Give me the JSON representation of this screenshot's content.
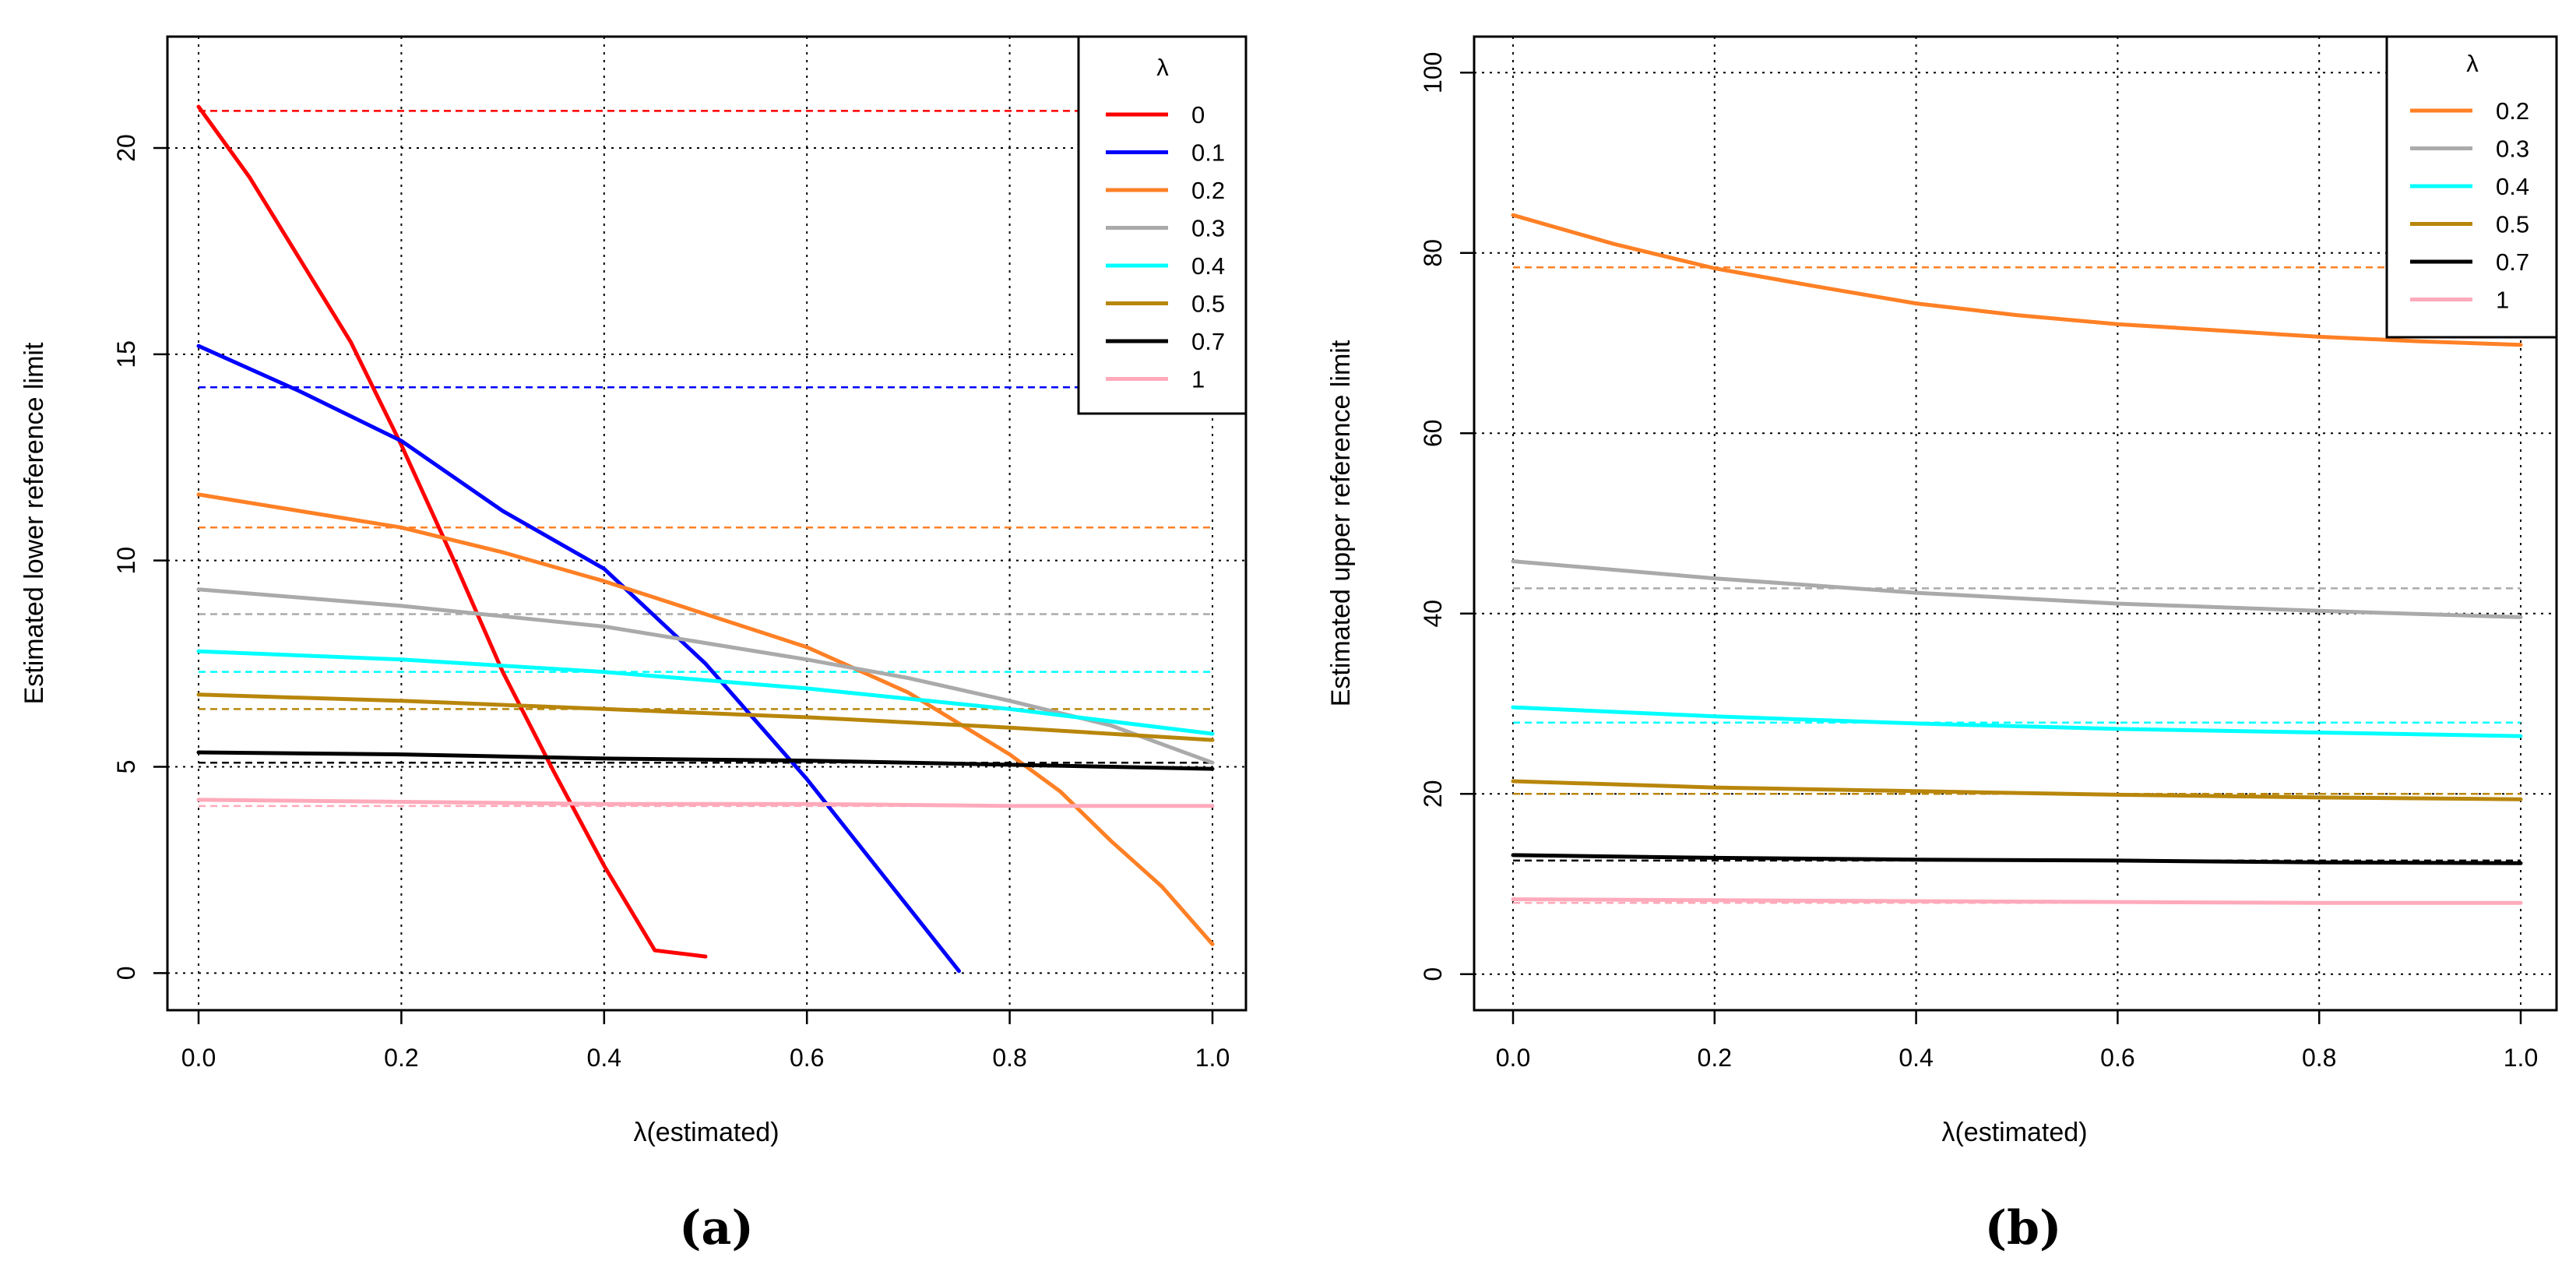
{
  "chart_data": [
    {
      "type": "line",
      "panel_label": "(a)",
      "xlabel": "λ(estimated)",
      "ylabel": "Estimated lower reference limit",
      "xlim": [
        0,
        1
      ],
      "ylim": [
        -0.9,
        22.7
      ],
      "xticks": [
        "0.0",
        "0.2",
        "0.4",
        "0.6",
        "0.8",
        "1.0"
      ],
      "yticks": [
        "0",
        "5",
        "10",
        "15",
        "20"
      ],
      "grid": true,
      "legend": {
        "title": "λ",
        "position": "top-right"
      },
      "series": [
        {
          "name": "0",
          "color": "#ff0000",
          "x": [
            0,
            0.05,
            0.1,
            0.15,
            0.2,
            0.25,
            0.3,
            0.35,
            0.4,
            0.45,
            0.5
          ],
          "y": [
            21.0,
            19.3,
            17.3,
            15.3,
            12.8,
            10.1,
            7.3,
            4.9,
            2.6,
            0.55,
            0.4
          ],
          "reference": 20.9
        },
        {
          "name": "0.1",
          "color": "#0000ff",
          "x": [
            0,
            0.1,
            0.2,
            0.3,
            0.4,
            0.5,
            0.6,
            0.7,
            0.75
          ],
          "y": [
            15.2,
            14.1,
            12.9,
            11.2,
            9.8,
            7.5,
            4.7,
            1.6,
            0.05
          ],
          "reference": 14.2
        },
        {
          "name": "0.2",
          "color": "#ff8025",
          "x": [
            0,
            0.1,
            0.2,
            0.3,
            0.4,
            0.5,
            0.6,
            0.7,
            0.8,
            0.85,
            0.9,
            0.95,
            1.0
          ],
          "y": [
            11.6,
            11.2,
            10.8,
            10.2,
            9.5,
            8.7,
            7.9,
            6.8,
            5.3,
            4.4,
            3.2,
            2.1,
            0.7
          ],
          "reference": 10.8
        },
        {
          "name": "0.3",
          "color": "#aaaaaa",
          "x": [
            0,
            0.1,
            0.2,
            0.3,
            0.4,
            0.5,
            0.6,
            0.7,
            0.8,
            0.9,
            1.0
          ],
          "y": [
            9.3,
            9.1,
            8.9,
            8.65,
            8.4,
            8.0,
            7.6,
            7.15,
            6.6,
            6.0,
            5.1
          ],
          "reference": 8.7
        },
        {
          "name": "0.4",
          "color": "#00ffff",
          "x": [
            0,
            0.2,
            0.4,
            0.6,
            0.8,
            1.0
          ],
          "y": [
            7.8,
            7.6,
            7.3,
            6.9,
            6.4,
            5.8
          ],
          "reference": 7.3
        },
        {
          "name": "0.5",
          "color": "#b8860b",
          "x": [
            0,
            0.2,
            0.4,
            0.6,
            0.8,
            1.0
          ],
          "y": [
            6.75,
            6.6,
            6.4,
            6.2,
            5.95,
            5.65
          ],
          "reference": 6.4
        },
        {
          "name": "0.7",
          "color": "#000000",
          "x": [
            0,
            0.2,
            0.4,
            0.6,
            0.8,
            1.0
          ],
          "y": [
            5.35,
            5.3,
            5.2,
            5.15,
            5.05,
            4.95
          ],
          "reference": 5.1
        },
        {
          "name": "1",
          "color": "#ffaabb",
          "x": [
            0,
            0.2,
            0.4,
            0.6,
            0.8,
            1.0
          ],
          "y": [
            4.2,
            4.15,
            4.1,
            4.1,
            4.05,
            4.05
          ],
          "reference": 4.05
        }
      ]
    },
    {
      "type": "line",
      "panel_label": "(b)",
      "xlabel": "λ(estimated)",
      "ylabel": "Estimated upper reference limit",
      "xlim": [
        0,
        1
      ],
      "ylim": [
        -4,
        104
      ],
      "xticks": [
        "0.0",
        "0.2",
        "0.4",
        "0.6",
        "0.8",
        "1.0"
      ],
      "yticks": [
        "0",
        "20",
        "40",
        "60",
        "80",
        "100"
      ],
      "grid": true,
      "legend": {
        "title": "λ",
        "position": "top-right"
      },
      "series": [
        {
          "name": "0.2",
          "color": "#ff8025",
          "x": [
            0,
            0.1,
            0.2,
            0.3,
            0.4,
            0.5,
            0.6,
            0.7,
            0.8,
            0.9,
            1.0
          ],
          "y": [
            84.2,
            81.0,
            78.3,
            76.3,
            74.4,
            73.1,
            72.1,
            71.4,
            70.7,
            70.2,
            69.8
          ],
          "reference": 78.4
        },
        {
          "name": "0.3",
          "color": "#aaaaaa",
          "x": [
            0,
            0.2,
            0.4,
            0.6,
            0.8,
            1.0
          ],
          "y": [
            45.8,
            43.9,
            42.3,
            41.1,
            40.3,
            39.6
          ],
          "reference": 42.8
        },
        {
          "name": "0.4",
          "color": "#00ffff",
          "x": [
            0,
            0.2,
            0.4,
            0.6,
            0.8,
            1.0
          ],
          "y": [
            29.6,
            28.6,
            27.8,
            27.2,
            26.8,
            26.4
          ],
          "reference": 27.9
        },
        {
          "name": "0.5",
          "color": "#b8860b",
          "x": [
            0,
            0.2,
            0.4,
            0.6,
            0.8,
            1.0
          ],
          "y": [
            21.4,
            20.7,
            20.3,
            19.9,
            19.6,
            19.4
          ],
          "reference": 20.0
        },
        {
          "name": "0.7",
          "color": "#000000",
          "x": [
            0,
            0.2,
            0.4,
            0.6,
            0.8,
            1.0
          ],
          "y": [
            13.2,
            12.9,
            12.7,
            12.6,
            12.4,
            12.3
          ],
          "reference": 12.6
        },
        {
          "name": "1",
          "color": "#ffaabb",
          "x": [
            0,
            0.2,
            0.4,
            0.6,
            0.8,
            1.0
          ],
          "y": [
            8.3,
            8.2,
            8.1,
            8.0,
            7.9,
            7.9
          ],
          "reference": 7.9
        }
      ]
    }
  ]
}
